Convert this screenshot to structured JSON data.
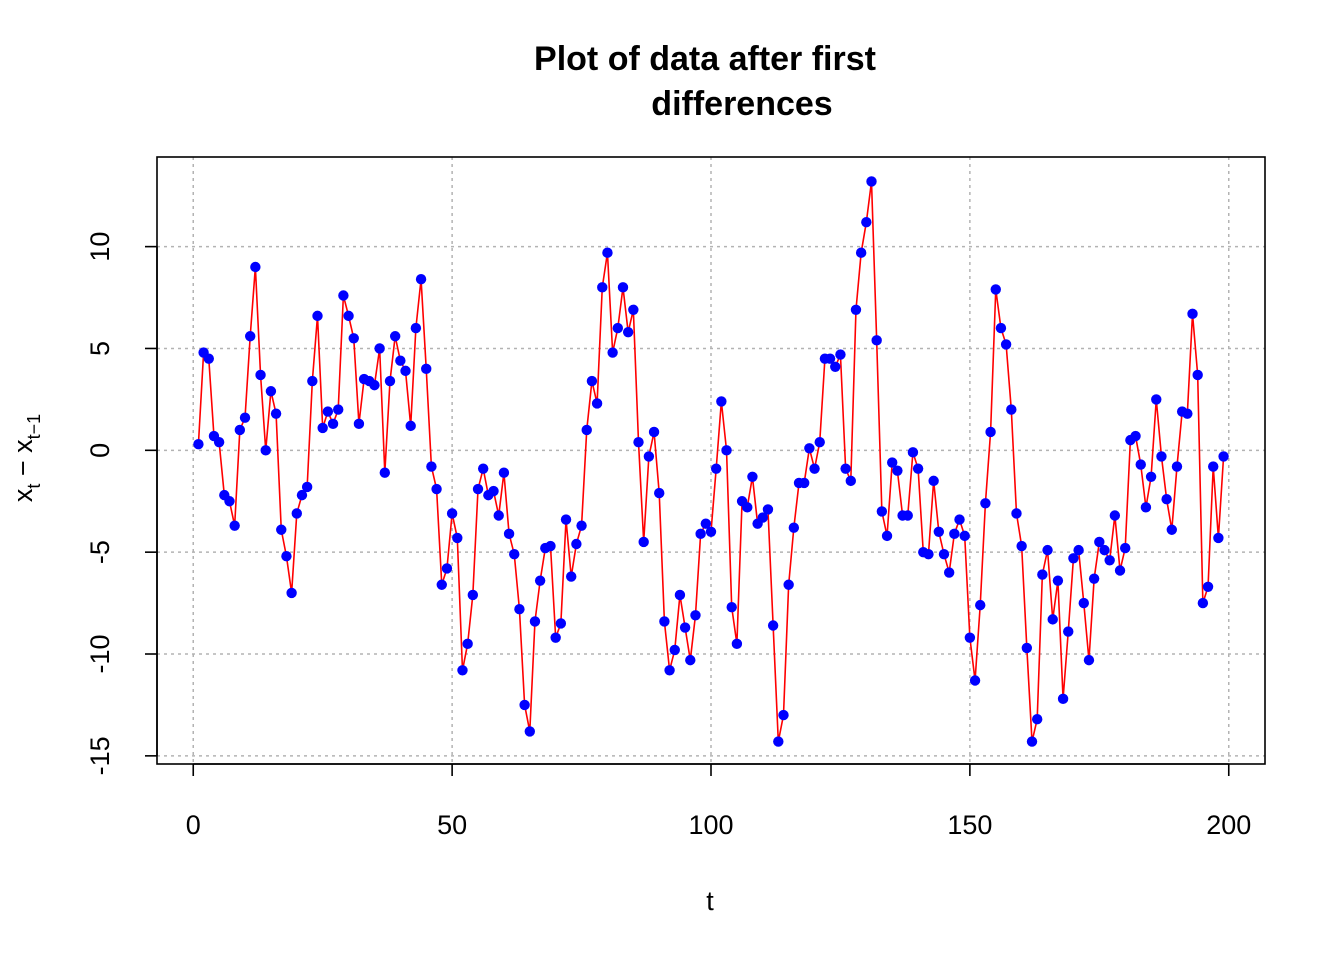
{
  "chart_data": {
    "type": "line",
    "title_lines": [
      "Plot of data after first",
      "differences"
    ],
    "xlabel": "t",
    "ylabel": {
      "base": "x",
      "sub1": "t",
      "mid": " − x",
      "sub2": "t−1"
    },
    "xlim": [
      -7,
      207
    ],
    "ylim": [
      -15.4,
      14.4
    ],
    "xticks": [
      0,
      50,
      100,
      150,
      200
    ],
    "yticks": [
      -15,
      -10,
      -5,
      0,
      5,
      10
    ],
    "grid": true,
    "line_color": "#ff0000",
    "point_color": "#0000ff",
    "series": [
      {
        "x": [
          1,
          2,
          3,
          4,
          5,
          6,
          7,
          8,
          9,
          10,
          11,
          12,
          13,
          14,
          15,
          16,
          17,
          18,
          19,
          20,
          21,
          22,
          23,
          24,
          25,
          26,
          27,
          28,
          29,
          30,
          31,
          32,
          33,
          34,
          35,
          36,
          37,
          38,
          39,
          40,
          41,
          42,
          43,
          44,
          45,
          46,
          47,
          48,
          49,
          50,
          51,
          52,
          53,
          54,
          55,
          56,
          57,
          58,
          59,
          60,
          61,
          62,
          63,
          64,
          65,
          66,
          67,
          68,
          69,
          70,
          71,
          72,
          73,
          74,
          75,
          76,
          77,
          78,
          79,
          80,
          81,
          82,
          83,
          84,
          85,
          86,
          87,
          88,
          89,
          90,
          91,
          92,
          93,
          94,
          95,
          96,
          97,
          98,
          99,
          100,
          101,
          102,
          103,
          104,
          105,
          106,
          107,
          108,
          109,
          110,
          111,
          112,
          113,
          114,
          115,
          116,
          117,
          118,
          119,
          120,
          121,
          122,
          123,
          124,
          125,
          126,
          127,
          128,
          129,
          130,
          131,
          132,
          133,
          134,
          135,
          136,
          137,
          138,
          139,
          140,
          141,
          142,
          143,
          144,
          145,
          146,
          147,
          148,
          149,
          150,
          151,
          152,
          153,
          154,
          155,
          156,
          157,
          158,
          159,
          160,
          161,
          162,
          163,
          164,
          165,
          166,
          167,
          168,
          169,
          170,
          171,
          172,
          173,
          174,
          175,
          176,
          177,
          178,
          179,
          180,
          181,
          182,
          183,
          184,
          185,
          186,
          187,
          188,
          189,
          190,
          191,
          192,
          193,
          194,
          195,
          196,
          197,
          198,
          199
        ],
        "y": [
          0.3,
          4.8,
          4.5,
          0.7,
          0.4,
          -2.2,
          -2.5,
          -3.7,
          1.0,
          1.6,
          5.6,
          9.0,
          3.7,
          0.0,
          2.9,
          1.8,
          -3.9,
          -5.2,
          -7.0,
          -3.1,
          -2.2,
          -1.8,
          3.4,
          6.6,
          1.1,
          1.9,
          1.3,
          2.0,
          7.6,
          6.6,
          5.5,
          1.3,
          3.5,
          3.4,
          3.2,
          5.0,
          -1.1,
          3.4,
          5.6,
          4.4,
          3.9,
          1.2,
          6.0,
          8.4,
          4.0,
          -0.8,
          -1.9,
          -6.6,
          -5.8,
          -3.1,
          -4.3,
          -10.8,
          -9.5,
          -7.1,
          -1.9,
          -0.9,
          -2.2,
          -2.0,
          -3.2,
          -1.1,
          -4.1,
          -5.1,
          -7.8,
          -12.5,
          -13.8,
          -8.4,
          -6.4,
          -4.8,
          -4.7,
          -9.2,
          -8.5,
          -3.4,
          -6.2,
          -4.6,
          -3.7,
          1.0,
          3.4,
          2.3,
          8.0,
          9.7,
          4.8,
          6.0,
          8.0,
          5.8,
          6.9,
          0.4,
          -4.5,
          -0.3,
          0.9,
          -2.1,
          -8.4,
          -10.8,
          -9.8,
          -7.1,
          -8.7,
          -10.3,
          -8.1,
          -4.1,
          -3.6,
          -4.0,
          -0.9,
          2.4,
          0.0,
          -7.7,
          -9.5,
          -2.5,
          -2.8,
          -1.3,
          -3.6,
          -3.3,
          -2.9,
          -8.6,
          -14.3,
          -13.0,
          -6.6,
          -3.8,
          -1.6,
          -1.6,
          0.1,
          -0.9,
          0.4,
          4.5,
          4.5,
          4.1,
          4.7,
          -0.9,
          -1.5,
          6.9,
          9.7,
          11.2,
          13.2,
          5.4,
          -3.0,
          -4.2,
          -0.6,
          -1.0,
          -3.2,
          -3.2,
          -0.1,
          -0.9,
          -5.0,
          -5.1,
          -1.5,
          -4.0,
          -5.1,
          -6.0,
          -4.1,
          -3.4,
          -4.2,
          -9.2,
          -11.3,
          -7.6,
          -2.6,
          0.9,
          7.9,
          6.0,
          5.2,
          2.0,
          -3.1,
          -4.7,
          -9.7,
          -14.3,
          -13.2,
          -6.1,
          -4.9,
          -8.3,
          -6.4,
          -12.2,
          -8.9,
          -5.3,
          -4.9,
          -7.5,
          -10.3,
          -6.3,
          -4.5,
          -4.9,
          -5.4,
          -3.2,
          -5.9,
          -4.8,
          0.5,
          0.7,
          -0.7,
          -2.8,
          -1.3,
          2.5,
          -0.3,
          -2.4,
          -3.9,
          -0.8,
          1.9,
          1.8,
          6.7,
          3.7,
          -7.5,
          -6.7,
          -0.8,
          -4.3,
          -0.3
        ]
      }
    ]
  }
}
